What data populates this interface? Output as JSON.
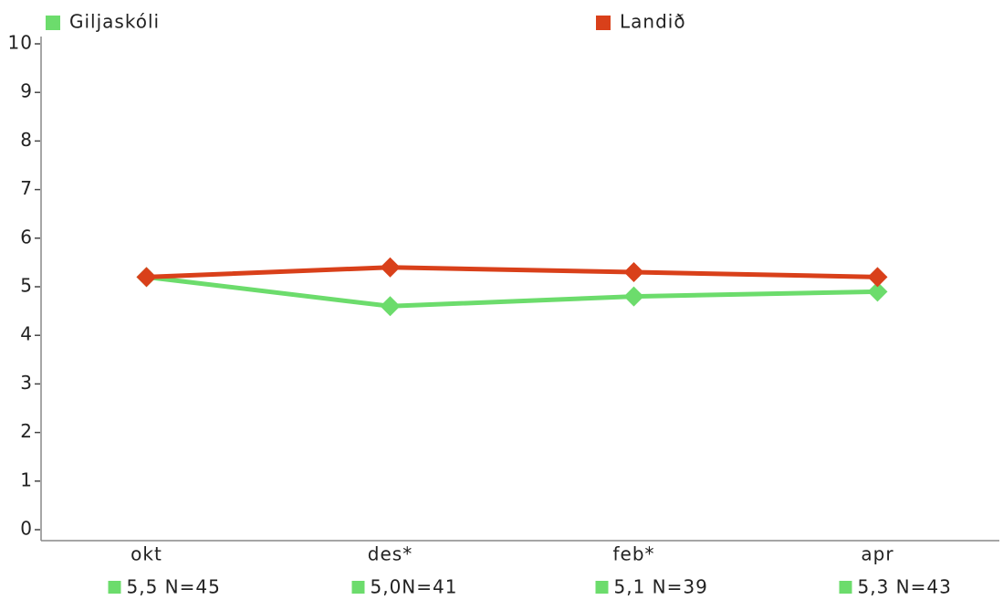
{
  "chart_data": {
    "type": "line",
    "categories": [
      "okt",
      "des*",
      "feb*",
      "apr"
    ],
    "series": [
      {
        "name": "Giljaskóli",
        "color": "#6cdc6c",
        "values": [
          5.2,
          4.6,
          4.8,
          4.9
        ]
      },
      {
        "name": "Landið",
        "color": "#d9401a",
        "values": [
          5.2,
          5.4,
          5.3,
          5.2
        ]
      }
    ],
    "annotations": [
      "5,5 N=45",
      "5,0N=41",
      "5,1 N=39",
      "5,3 N=43"
    ],
    "ylim": [
      0,
      10
    ],
    "yticks": [
      0,
      1,
      2,
      3,
      4,
      5,
      6,
      7,
      8,
      9,
      10
    ]
  }
}
